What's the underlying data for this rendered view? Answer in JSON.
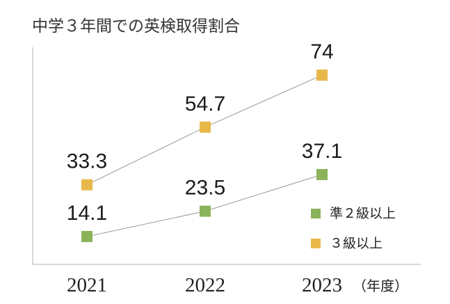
{
  "chart_data": {
    "type": "line",
    "title": "中学３年間での英検取得割合",
    "xlabel": "",
    "ylabel": "",
    "x_unit": "（年度）",
    "categories": [
      "2021",
      "2022",
      "2023"
    ],
    "ylim": [
      0,
      80
    ],
    "grid": false,
    "legend_position": "right",
    "series": [
      {
        "name": "準２級以上",
        "values": [
          14.1,
          23.5,
          37.1
        ],
        "color": "#8bb35a"
      },
      {
        "name": "３級以上",
        "values": [
          33.3,
          54.7,
          74
        ],
        "color": "#e8b84a"
      }
    ]
  }
}
